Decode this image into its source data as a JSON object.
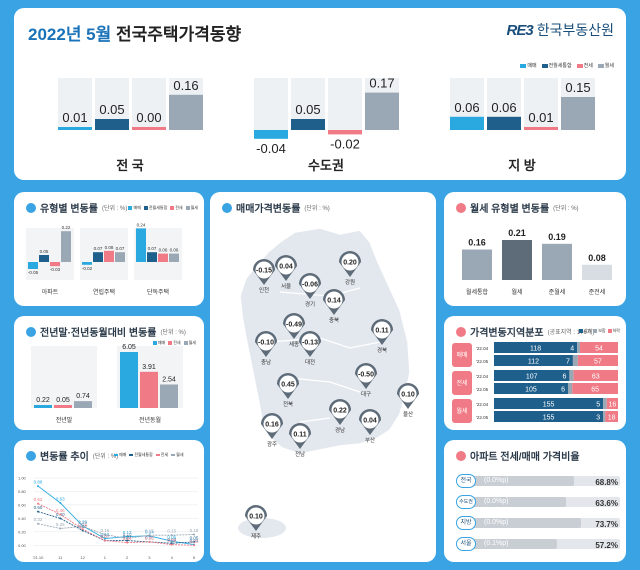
{
  "header": {
    "title_year": "2022년 5월",
    "title_rest": "전국주택가격동향",
    "logo_mark": "RE3",
    "logo_text": "한국부동산원",
    "legend": [
      {
        "label": "매매",
        "color": "#2aa9e0"
      },
      {
        "label": "전월세통합",
        "color": "#1f5f8b"
      },
      {
        "label": "전세",
        "color": "#f07a85"
      },
      {
        "label": "월세",
        "color": "#9aa7b4"
      }
    ],
    "colors": {
      "title_blue": "#1a73b8",
      "brand": "#1a4e7a"
    }
  },
  "chart_data": [
    {
      "type": "bar",
      "id": "top-summary",
      "categories": [
        "전 국",
        "수도권",
        "지 방"
      ],
      "series": [
        {
          "name": "매매",
          "values": [
            0.01,
            -0.04,
            0.06
          ]
        },
        {
          "name": "전월세통합",
          "values": [
            0.05,
            0.05,
            0.06
          ]
        },
        {
          "name": "전세",
          "values": [
            0.0,
            -0.02,
            0.01
          ]
        },
        {
          "name": "월세",
          "values": [
            0.16,
            0.17,
            0.15
          ]
        }
      ],
      "labels": [
        [
          "0.01",
          "0.05",
          "0.00",
          "0.16"
        ],
        [
          "-0.04",
          "0.05",
          "-0.02",
          "0.17"
        ],
        [
          "0.06",
          "0.06",
          "0.01",
          "0.15"
        ]
      ]
    },
    {
      "type": "bar",
      "id": "by-type",
      "title": "유형별 변동률",
      "unit": "(단위 : %)",
      "categories": [
        "아파트",
        "연립주택",
        "단독주택"
      ],
      "series": [
        {
          "name": "매매",
          "values": [
            -0.05,
            -0.02,
            0.24
          ]
        },
        {
          "name": "전월세통합",
          "values": [
            0.05,
            0.07,
            0.07
          ]
        },
        {
          "name": "전세",
          "values": [
            -0.03,
            0.08,
            0.06
          ]
        },
        {
          "name": "월세",
          "values": [
            0.22,
            0.07,
            0.06
          ]
        }
      ],
      "labels": [
        [
          "-0.05",
          "0.05",
          "-0.03",
          "0.22"
        ],
        [
          "-0.02",
          "0.07",
          "0.08",
          "0.07"
        ],
        [
          "0.24",
          "0.07",
          "0.06",
          "0.06"
        ]
      ]
    },
    {
      "type": "bar",
      "id": "cumulative",
      "title": "전년말·전년동월대비 변동률",
      "unit": "(단위 : %)",
      "categories": [
        "전년말",
        "전년동월"
      ],
      "series": [
        {
          "name": "매매",
          "values": [
            0.22,
            6.05
          ]
        },
        {
          "name": "전세",
          "values": [
            0.05,
            3.91
          ]
        },
        {
          "name": "월세",
          "values": [
            0.74,
            2.54
          ]
        }
      ],
      "labels": [
        [
          "0.22",
          "0.05",
          "0.74"
        ],
        [
          "6.05",
          "3.91",
          "2.54"
        ]
      ]
    },
    {
      "type": "line",
      "id": "trend",
      "title": "변동률 추이",
      "unit": "(단위 : %)",
      "x": [
        "'21.10",
        "11",
        "12",
        "1",
        "2",
        "3",
        "4",
        "5"
      ],
      "ylim": [
        -0.1,
        1.0
      ],
      "yticks": [
        "1.00",
        "0.80",
        "0.60",
        "0.40",
        "0.20",
        "0.00"
      ],
      "series": [
        {
          "name": "매매",
          "values": [
            0.88,
            0.63,
            0.29,
            0.1,
            0.13,
            0.14,
            0.06,
            0.01
          ]
        },
        {
          "name": "전월세통합",
          "values": [
            0.5,
            0.4,
            0.22,
            0.07,
            0.07,
            0.05,
            0.03,
            0.05
          ]
        },
        {
          "name": "전세",
          "values": [
            0.62,
            0.46,
            0.24,
            0.07,
            0.04,
            0.05,
            0.01,
            0.0
          ]
        },
        {
          "name": "월세",
          "values": [
            0.32,
            0.25,
            0.28,
            0.16,
            0.1,
            0.15,
            0.15,
            0.16
          ]
        }
      ]
    },
    {
      "type": "bar",
      "id": "monthly-rent",
      "title": "월세 유형별 변동률",
      "unit": "(단위 : %)",
      "categories": [
        "월세통합",
        "월세",
        "준월세",
        "준전세"
      ],
      "values": [
        0.16,
        0.21,
        0.19,
        0.08
      ],
      "labels": [
        "0.16",
        "0.21",
        "0.19",
        "0.08"
      ]
    },
    {
      "type": "bar",
      "id": "distribution",
      "title": "가격변동지역분포",
      "unit": "(공표지역 : 176개)",
      "legend": [
        "상승",
        "보합",
        "하락"
      ],
      "groups": [
        {
          "name": "매매",
          "rows": [
            {
              "period": "'22.04",
              "up": 118,
              "flat": 4,
              "down": 54
            },
            {
              "period": "'22.05",
              "up": 112,
              "flat": 7,
              "down": 57
            }
          ]
        },
        {
          "name": "전세",
          "rows": [
            {
              "period": "'22.04",
              "up": 107,
              "flat": 6,
              "down": 63
            },
            {
              "period": "'22.05",
              "up": 105,
              "flat": 6,
              "down": 65
            }
          ]
        },
        {
          "name": "월세",
          "rows": [
            {
              "period": "'22.04",
              "up": 155,
              "flat": 5,
              "down": 16
            },
            {
              "period": "'22.05",
              "up": 155,
              "flat": 3,
              "down": 18
            }
          ]
        }
      ]
    },
    {
      "type": "table",
      "id": "jeonse-ratio",
      "title": "아파트 전세/매매 가격비율",
      "rows": [
        {
          "region": "전국",
          "change": "(0.0%p)",
          "value": "68.8%",
          "fraction": 0.688
        },
        {
          "region": "수도권",
          "change": "(0.0%p)",
          "value": "63.6%",
          "fraction": 0.636
        },
        {
          "region": "지방",
          "change": "(0.0%p)",
          "value": "73.7%",
          "fraction": 0.737
        },
        {
          "region": "서울",
          "change": "(0.1%p)",
          "value": "57.2%",
          "fraction": 0.572
        }
      ]
    }
  ],
  "map": {
    "title": "매매가격변동률",
    "unit": "(단위 : %)",
    "markers": [
      {
        "value": "-0.15",
        "label": "인천"
      },
      {
        "value": "0.04",
        "label": "서울"
      },
      {
        "value": "-0.06",
        "label": "경기"
      },
      {
        "value": "0.20",
        "label": "강원"
      },
      {
        "value": "0.14",
        "label": "충북"
      },
      {
        "value": "-0.49",
        "label": "세종"
      },
      {
        "value": "-0.10",
        "label": "충남"
      },
      {
        "value": "-0.13",
        "label": "대전"
      },
      {
        "value": "0.11",
        "label": "경북"
      },
      {
        "value": "0.45",
        "label": "전북"
      },
      {
        "value": "-0.50",
        "label": "대구"
      },
      {
        "value": "0.16",
        "label": "광주"
      },
      {
        "value": "0.11",
        "label": "전남"
      },
      {
        "value": "0.22",
        "label": "경남"
      },
      {
        "value": "0.04",
        "label": "부산"
      },
      {
        "value": "0.10",
        "label": "울산"
      },
      {
        "value": "0.10",
        "label": "제주"
      }
    ]
  }
}
